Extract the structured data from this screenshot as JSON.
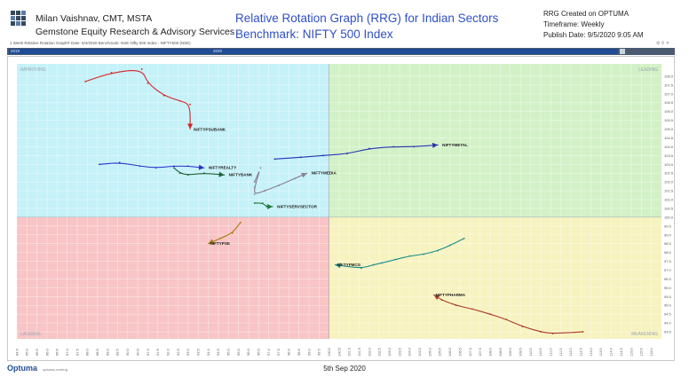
{
  "header": {
    "author_name": "Milan Vaishnav, CMT, MSTA",
    "company": "Gemstone Equity Research & Advisory Services",
    "title_line1": "Relative Rotation Graph (RRG) for Indian Sectors",
    "title_line2": "Benchmark: NIFTY 500 Index",
    "meta_line1": "RRG Created on OPTUMA",
    "meta_line2": "Timeframe: Weekly",
    "meta_line3": "Publish Date: 9/5/2020 9:05 AM"
  },
  "toolbar": {
    "text": "1 Week Relative Rotation Graph® Date: 9/4/2020 Benchmark: NSE Nifty 500 Index - NIFTY500 (NSE)"
  },
  "timeline": {
    "label_start": "2019",
    "label_mid": "2020"
  },
  "footer": {
    "logo": "Optuma",
    "logo_sub": "optuma.com/rrg",
    "date": "5th Sep 2020"
  },
  "chart_data": {
    "type": "scatter",
    "title": "",
    "xlabel": "",
    "ylabel": "",
    "xlim": [
      84.5,
      116.5
    ],
    "ylim": [
      93.1,
      108.7
    ],
    "center": [
      100,
      100
    ],
    "quadrants": {
      "top_left": {
        "name": "IMPROVING",
        "color": "#c5f1f8"
      },
      "top_right": {
        "name": "LEADING",
        "color": "#d3f1c7"
      },
      "bottom_left": {
        "name": "LAGGING",
        "color": "#f8c4c6"
      },
      "bottom_right": {
        "name": "WEAKENING",
        "color": "#f7f3c0"
      }
    },
    "x_ticks": [
      "84.5",
      "85.0",
      "85.5",
      "86.0",
      "86.5",
      "87.0",
      "87.5",
      "88.0",
      "88.5",
      "89.0",
      "89.5",
      "90.0",
      "90.5",
      "91.0",
      "91.5",
      "92.0",
      "92.5",
      "93.0",
      "93.5",
      "94.0",
      "94.5",
      "95.0",
      "95.5",
      "96.0",
      "96.5",
      "97.0",
      "97.5",
      "98.0",
      "98.5",
      "99.0",
      "99.5",
      "100.0",
      "100.5",
      "101.0",
      "101.5",
      "102.0",
      "102.5",
      "103.0",
      "103.5",
      "104.0",
      "104.5",
      "105.0",
      "105.5",
      "106.0",
      "106.5",
      "107.0",
      "107.5",
      "108.0",
      "108.5",
      "109.0",
      "109.5",
      "110.0",
      "110.5",
      "111.0",
      "111.5",
      "112.0",
      "112.5",
      "113.0",
      "113.5",
      "114.0",
      "114.5",
      "115.0",
      "115.5",
      "116.0"
    ],
    "y_ticks": [
      "108.0",
      "107.5",
      "107.0",
      "106.5",
      "106.0",
      "105.5",
      "105.0",
      "104.5",
      "104.0",
      "103.5",
      "103.0",
      "102.5",
      "102.0",
      "101.5",
      "101.0",
      "100.5",
      "100.0",
      "99.5",
      "99.0",
      "98.5",
      "98.0",
      "97.5",
      "97.0",
      "96.5",
      "96.0",
      "95.5",
      "95.0",
      "94.5",
      "94.0",
      "93.5"
    ],
    "series": [
      {
        "name": "NIFTYPSUBANK",
        "color": "#d62424",
        "x": [
          87.9,
          89.2,
          90.7,
          91.0,
          91.8,
          92.6,
          93.1,
          93.1
        ],
        "y": [
          107.7,
          108.2,
          108.4,
          107.6,
          106.9,
          106.6,
          106.4,
          105.0
        ]
      },
      {
        "name": "NIFTYREALTY",
        "color": "#2530cc",
        "x": [
          88.6,
          89.6,
          90.6,
          91.4,
          92.3,
          93.0,
          93.8
        ],
        "y": [
          103.0,
          103.1,
          102.9,
          102.8,
          102.9,
          102.9,
          102.8
        ]
      },
      {
        "name": "NIFTYBANK",
        "color": "#1f5f3b",
        "x": [
          92.3,
          92.6,
          93.0,
          93.8,
          94.8
        ],
        "y": [
          102.8,
          102.5,
          102.4,
          102.5,
          102.4
        ]
      },
      {
        "name": "NIFTYMETAL",
        "color": "#2633b0",
        "x": [
          97.3,
          98.6,
          99.7,
          100.9,
          102.0,
          103.2,
          104.2,
          105.4
        ],
        "y": [
          103.3,
          103.4,
          103.5,
          103.6,
          103.9,
          104.0,
          104.0,
          104.1
        ]
      },
      {
        "name": "NIFTYMEDIA",
        "color": "#8a7f93",
        "x": [
          96.3,
          96.6,
          96.3,
          96.3,
          96.8,
          97.5,
          98.3,
          98.9
        ],
        "y": [
          102.0,
          102.8,
          101.7,
          101.3,
          101.5,
          101.8,
          102.2,
          102.5
        ]
      },
      {
        "name": "NIFTYSERVSECTOR",
        "color": "#1f7a3b",
        "x": [
          96.3,
          96.7,
          96.9,
          97.2
        ],
        "y": [
          100.8,
          100.8,
          100.6,
          100.6
        ]
      },
      {
        "name": "NIFTYPSE",
        "color": "#a8760e",
        "x": [
          95.6,
          95.2,
          94.6,
          94.0
        ],
        "y": [
          99.7,
          99.1,
          98.8,
          98.5
        ]
      },
      {
        "name": "NIFTYFMCG",
        "color": "#1a8c8c",
        "x": [
          106.7,
          106.0,
          105.4,
          104.7,
          104.0,
          103.3,
          102.6,
          102.2,
          101.6,
          100.3
        ],
        "y": [
          98.8,
          98.4,
          98.1,
          97.9,
          97.8,
          97.6,
          97.4,
          97.3,
          97.1,
          97.3
        ]
      },
      {
        "name": "NIFTYPHARMA",
        "color": "#a83a2e",
        "x": [
          112.6,
          111.1,
          110.5,
          109.6,
          108.8,
          108.0,
          107.1,
          106.3,
          105.6,
          105.2
        ],
        "y": [
          93.5,
          93.4,
          93.5,
          93.8,
          94.2,
          94.5,
          94.8,
          95.0,
          95.3,
          95.6
        ]
      }
    ]
  }
}
